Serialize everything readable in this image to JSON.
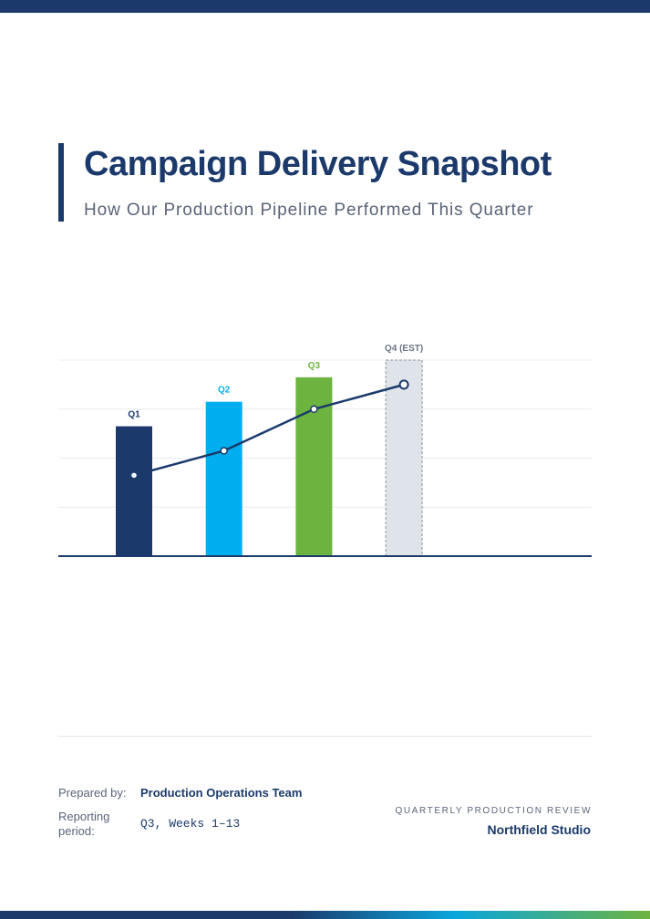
{
  "document": {
    "title": "Campaign Delivery Snapshot",
    "subtitle": "How Our Production Pipeline Performed This Quarter"
  },
  "chart_data": {
    "type": "bar",
    "categories": [
      "Q1",
      "Q2",
      "Q3",
      "Q4 (EST)"
    ],
    "series": [
      {
        "type": "bar",
        "values": [
          53,
          63,
          73,
          80
        ],
        "estimated": [
          false,
          false,
          false,
          true
        ]
      },
      {
        "type": "line",
        "values": [
          33,
          43,
          60,
          70
        ]
      }
    ],
    "category_colors": [
      "#1b3a6b",
      "#00aeef",
      "#6db33f",
      "#dfe3ea"
    ],
    "line_color": "#1b3a6b",
    "ylim": [
      0,
      80
    ],
    "grid": true,
    "xlabel": "",
    "ylabel": ""
  },
  "footer": {
    "prepared_by_label": "Prepared by:",
    "prepared_by_value": "Production Operations Team",
    "reporting_period_label_1": "Reporting",
    "reporting_period_label_2": "period:",
    "reporting_period_value": "Q3, Weeks 1–13",
    "kicker": "QUARTERLY PRODUCTION REVIEW",
    "studio": "Northfield Studio"
  },
  "colors": {
    "navy": "#1b3a6b",
    "cyan": "#00aeef",
    "green": "#6db33f",
    "gray_text": "#5a6478"
  }
}
